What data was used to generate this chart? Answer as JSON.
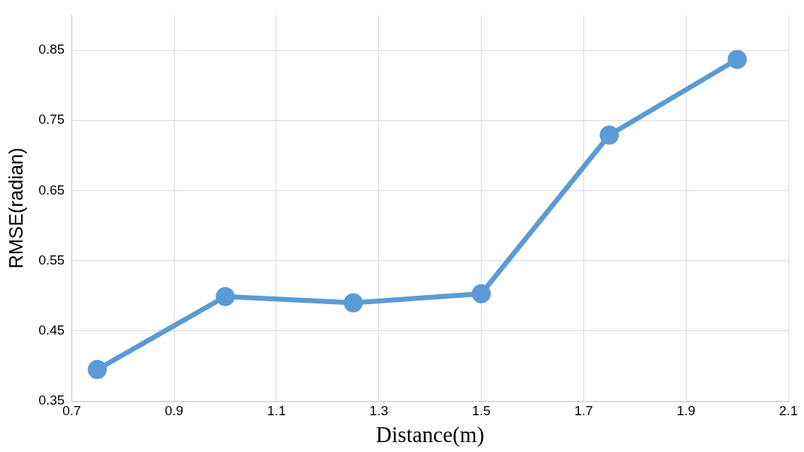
{
  "chart_data": {
    "type": "line",
    "xlabel": "Distance(m)",
    "ylabel": "RMSE(radian)",
    "x": [
      0.75,
      1.0,
      1.25,
      1.5,
      1.75,
      2.0
    ],
    "series": [
      {
        "color": "#5b9bd5",
        "values": [
          0.395,
          0.499,
          0.49,
          0.503,
          0.729,
          0.837
        ]
      }
    ],
    "xlim": [
      0.7,
      2.1
    ],
    "xticks": [
      0.7,
      0.9,
      1.1,
      1.3,
      1.5,
      1.7,
      1.9,
      2.1
    ],
    "ylim": [
      0.35,
      0.9
    ],
    "yticks": [
      0.35,
      0.45,
      0.55,
      0.65,
      0.75,
      0.85
    ],
    "grid": true,
    "legend": false,
    "marker": "circle",
    "line_style": "solid"
  }
}
